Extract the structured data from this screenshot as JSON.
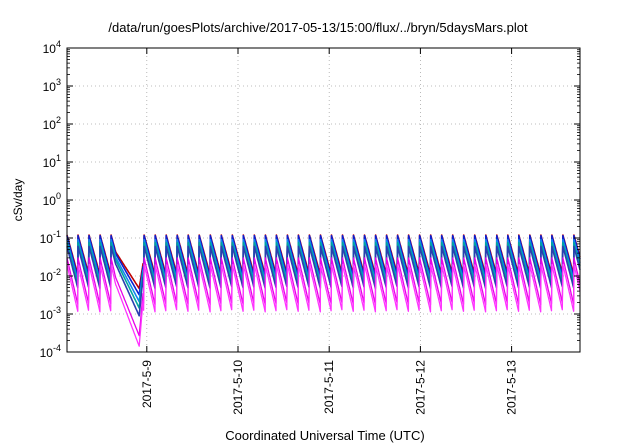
{
  "chart_data": {
    "type": "line",
    "title": "/data/run/goesPlots/archive/2017-05-13/15:00/flux/../bryn/5daysMars.plot",
    "xlabel": "Coordinated Universal Time (UTC)",
    "ylabel": "cSv/day",
    "yscale": "log",
    "ylim": [
      0.0001,
      10000
    ],
    "y_ticks": [
      {
        "value": 0.0001,
        "base": "10",
        "exp": "-4"
      },
      {
        "value": 0.001,
        "base": "10",
        "exp": "-3"
      },
      {
        "value": 0.01,
        "base": "10",
        "exp": "-2"
      },
      {
        "value": 0.1,
        "base": "10",
        "exp": "-1"
      },
      {
        "value": 1,
        "base": "10",
        "exp": "0"
      },
      {
        "value": 10,
        "base": "10",
        "exp": "1"
      },
      {
        "value": 100,
        "base": "10",
        "exp": "2"
      },
      {
        "value": 1000,
        "base": "10",
        "exp": "3"
      },
      {
        "value": 10000,
        "base": "10",
        "exp": "4"
      }
    ],
    "xlim": [
      "2017-05-08T03:00",
      "2017-05-13T18:00"
    ],
    "x_ticks": [
      "2017-5-9",
      "2017-5-10",
      "2017-5-11",
      "2017-5-12",
      "2017-5-13"
    ],
    "grid": true,
    "legend": "none",
    "sawtooth_period_hours": 2.9,
    "dip": {
      "start": "2017-05-08T16:00",
      "min": "2017-05-08T22:00",
      "end": "2017-05-08T23:00"
    },
    "series": [
      {
        "color": "#c00000",
        "peak": 0.12,
        "trough": 0.0105
      },
      {
        "color": "#0b1fd0",
        "peak": 0.115,
        "trough": 0.0088
      },
      {
        "color": "#1188ee",
        "peak": 0.09,
        "trough": 0.0072
      },
      {
        "color": "#00a6a0",
        "peak": 0.075,
        "trough": 0.006
      },
      {
        "color": "#2a3fb0",
        "peak": 0.06,
        "trough": 0.0046
      },
      {
        "color": "#e800e8",
        "peak": 0.03,
        "trough": 0.0017
      },
      {
        "color": "#ff33ff",
        "peak": 0.02,
        "trough": 0.0011
      }
    ]
  }
}
